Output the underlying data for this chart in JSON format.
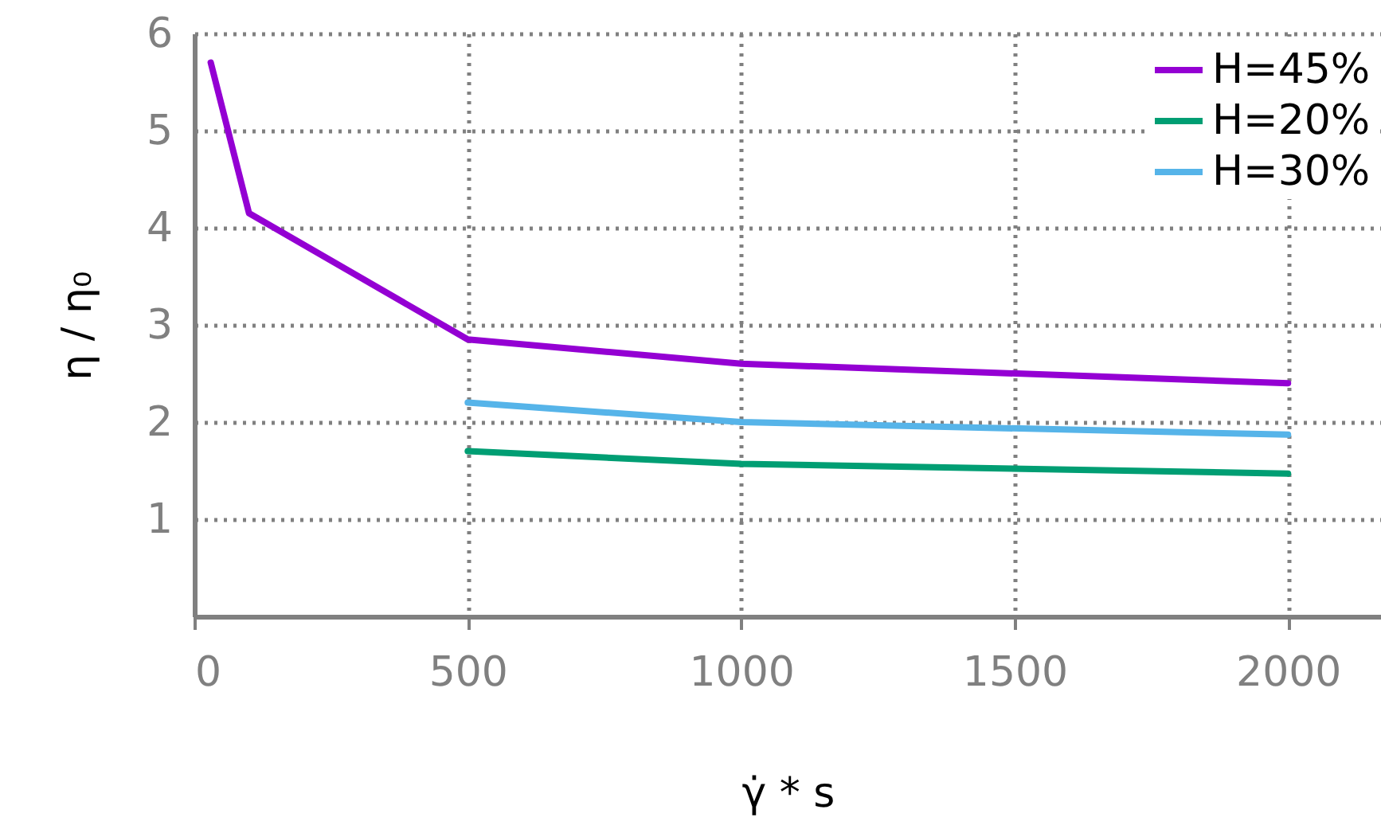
{
  "chart_data": {
    "type": "line",
    "xlabel": "γ̇ * s",
    "ylabel": "η / η₀",
    "xlim": [
      0,
      2170
    ],
    "ylim": [
      0,
      6
    ],
    "xticks": [
      0,
      500,
      1000,
      1500,
      2000
    ],
    "yticks": [
      1,
      2,
      3,
      4,
      5,
      6
    ],
    "grid": true,
    "legend": "top right",
    "line_style": "solid",
    "series": [
      {
        "name": "H=45%",
        "color": "#9400d3",
        "x": [
          30,
          100,
          500,
          1000,
          2000
        ],
        "values": [
          5.7,
          4.15,
          2.85,
          2.6,
          2.4
        ]
      },
      {
        "name": "H=20%",
        "color": "#009e73",
        "x": [
          500,
          1000,
          2000
        ],
        "values": [
          1.7,
          1.57,
          1.47
        ]
      },
      {
        "name": "H=30%",
        "color": "#56b4e9",
        "x": [
          500,
          1000,
          2000
        ],
        "values": [
          2.2,
          2.0,
          1.87
        ]
      }
    ]
  }
}
